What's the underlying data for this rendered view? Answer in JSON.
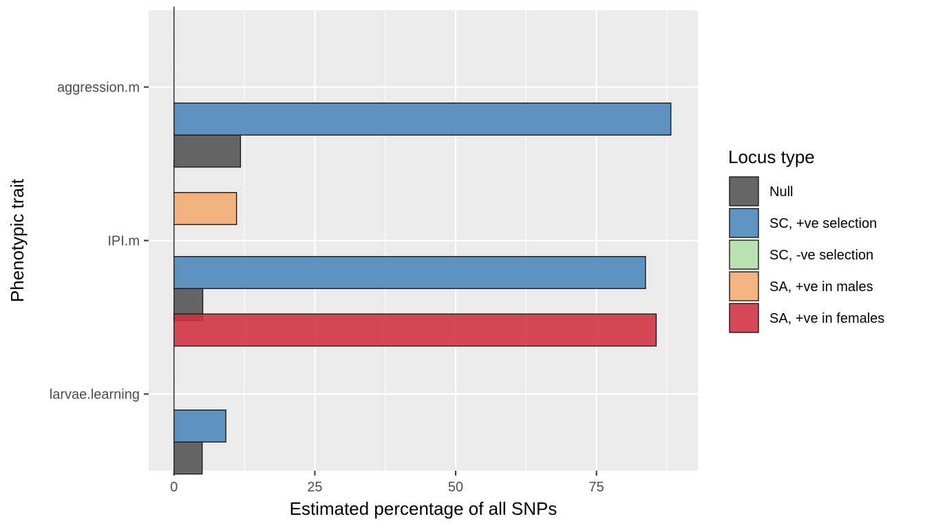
{
  "chart_data": {
    "type": "bar",
    "orientation": "horizontal",
    "categories": [
      "aggression.m",
      "IPI.m",
      "larvae.learning"
    ],
    "xlabel": "Estimated percentage of all SNPs",
    "ylabel": "Phenotypic trait",
    "xlim": [
      -4.5,
      93
    ],
    "xticks": [
      0,
      25,
      50,
      75
    ],
    "grid": true,
    "legend": {
      "title": "Locus type",
      "position": "right",
      "entries": [
        {
          "name": "Null",
          "color": "#525252"
        },
        {
          "name": "SC, +ve selection",
          "color": "#4a86b8"
        },
        {
          "name": "SC, -ve selection",
          "color": "#b2dfa6"
        },
        {
          "name": "SA, +ve in males",
          "color": "#f4ab6f"
        },
        {
          "name": "SA, +ve in females",
          "color": "#d22f42"
        }
      ]
    },
    "series": [
      {
        "name": "Null",
        "values": [
          11.8,
          5.1,
          5.0
        ]
      },
      {
        "name": "SC, +ve selection",
        "values": [
          88.2,
          83.7,
          9.2
        ]
      },
      {
        "name": "SC, -ve selection",
        "values": [
          0,
          0,
          0
        ]
      },
      {
        "name": "SA, +ve in males",
        "values": [
          0,
          11.1,
          0
        ]
      },
      {
        "name": "SA, +ve in females",
        "values": [
          0,
          0,
          85.6
        ]
      }
    ]
  }
}
